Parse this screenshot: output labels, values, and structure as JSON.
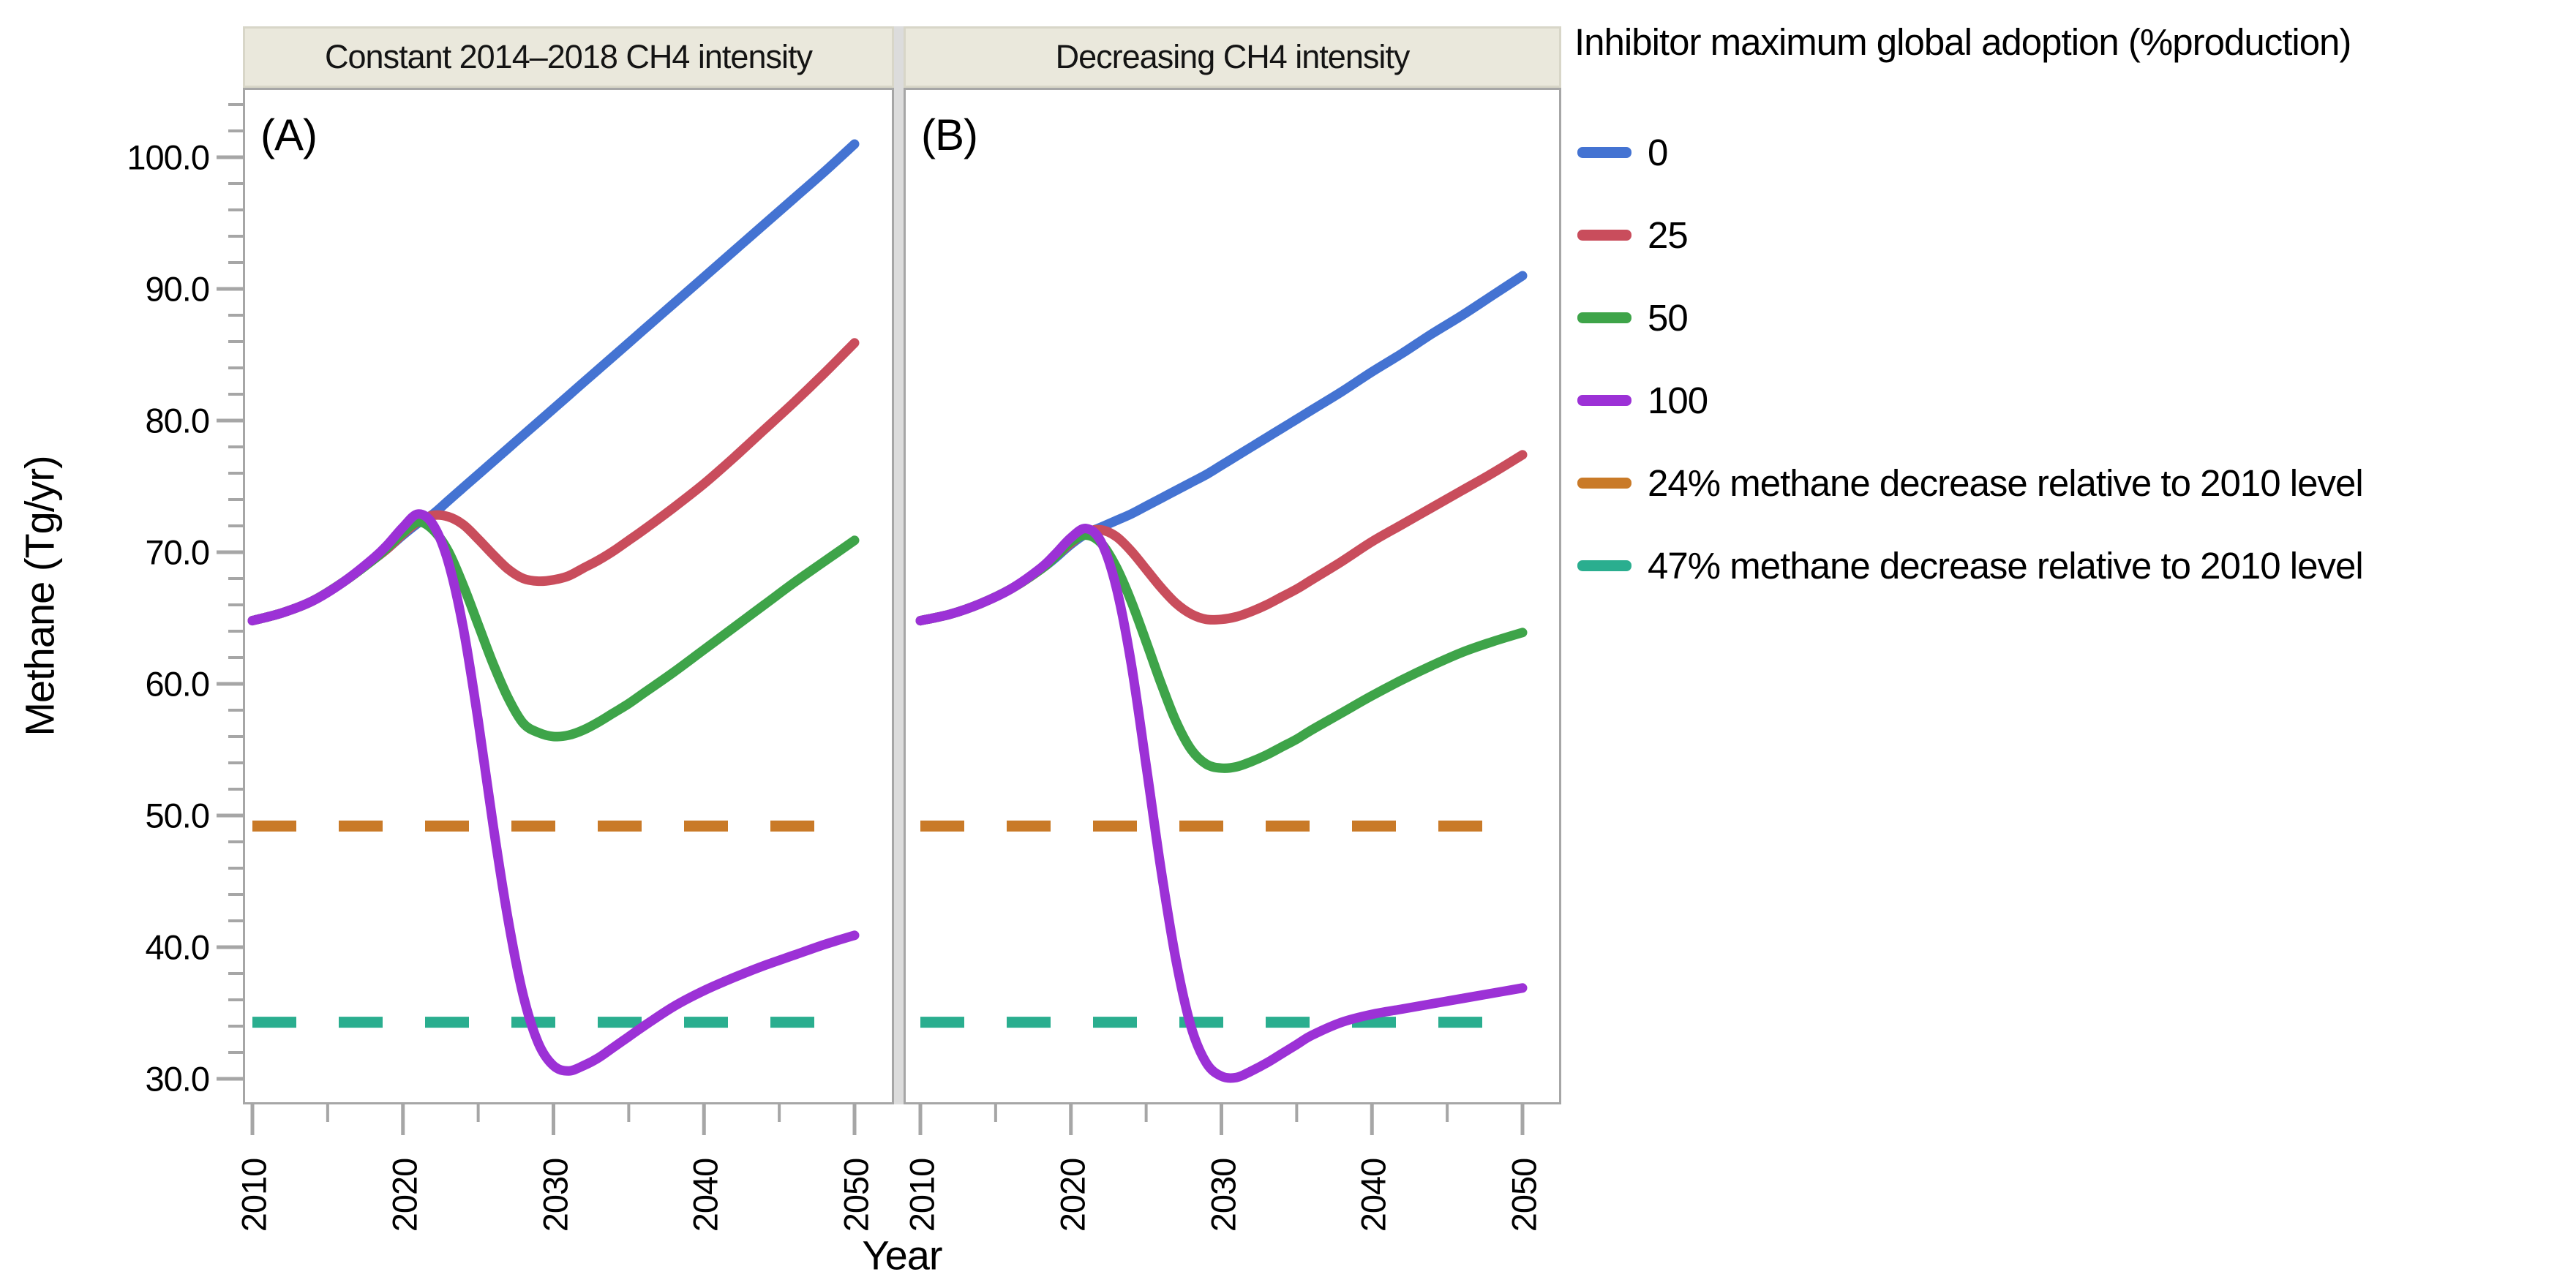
{
  "figure": {
    "panel_a": {
      "header": "Constant 2014–2018 CH4 intensity",
      "label": "(A)"
    },
    "panel_b": {
      "header": "Decreasing CH4 intensity",
      "label": "(B)"
    },
    "y_axis": {
      "title": "Methane (Tg/yr)",
      "tick_labels": [
        "100.0",
        "90.0",
        "80.0",
        "70.0",
        "60.0",
        "50.0",
        "40.0",
        "30.0"
      ],
      "tick_values": [
        100,
        90,
        80,
        70,
        60,
        50,
        40,
        30
      ],
      "minor_step": 2
    },
    "x_axis": {
      "title": "Year",
      "tick_labels": [
        "2010",
        "2020",
        "2030",
        "2040",
        "2050"
      ],
      "tick_values": [
        2010,
        2020,
        2030,
        2040,
        2050
      ],
      "minor_step": 5
    },
    "legend": {
      "title": "Inhibitor maximum global adoption (%production)",
      "items": [
        {
          "label": "0",
          "color": "#4473D2",
          "dashed": false
        },
        {
          "label": "25",
          "color": "#C94D5C",
          "dashed": false
        },
        {
          "label": "50",
          "color": "#3EA449",
          "dashed": false
        },
        {
          "label": "100",
          "color": "#9C31D6",
          "dashed": false
        },
        {
          "label": "24% methane decrease relative to 2010 level",
          "color": "#C97A28",
          "dashed": true
        },
        {
          "label": "47% methane decrease relative to 2010 level",
          "color": "#2AAE8F",
          "dashed": true
        }
      ]
    },
    "colors": {
      "axis_gray": "#A6A6A6",
      "header_fill": "#EAE8DC",
      "divider": "#DCDCDC"
    }
  },
  "chart_data": [
    {
      "type": "line",
      "panel": "A",
      "title": "Constant 2014–2018 CH4 intensity",
      "xlabel": "Year",
      "ylabel": "Methane (Tg/yr)",
      "xlim": [
        2009.4,
        2052.6
      ],
      "ylim": [
        28,
        105
      ],
      "grid": false,
      "legend_position": "right",
      "x": [
        2010,
        2012,
        2014,
        2016,
        2018,
        2019,
        2020,
        2021,
        2022,
        2023,
        2024,
        2025,
        2026,
        2027,
        2028,
        2029,
        2030,
        2031,
        2032,
        2033,
        2034,
        2035,
        2036,
        2038,
        2040,
        2042,
        2044,
        2046,
        2048,
        2050
      ],
      "series": [
        {
          "name": "0",
          "color": "#4473D2",
          "values": [
            64.8,
            65.4,
            66.3,
            67.7,
            69.4,
            70.3,
            71.3,
            72.2,
            72.9,
            73.9,
            74.9,
            75.9,
            76.9,
            77.9,
            78.9,
            79.9,
            80.9,
            81.9,
            82.9,
            83.9,
            84.9,
            85.9,
            86.9,
            88.9,
            90.9,
            92.9,
            94.9,
            96.9,
            98.9,
            101.0
          ]
        },
        {
          "name": "25",
          "color": "#C94D5C",
          "values": [
            64.8,
            65.4,
            66.3,
            67.7,
            69.4,
            70.3,
            71.4,
            72.3,
            72.8,
            72.7,
            72.1,
            71.0,
            69.8,
            68.7,
            68.0,
            67.8,
            67.9,
            68.2,
            68.8,
            69.4,
            70.1,
            70.9,
            71.7,
            73.4,
            75.2,
            77.2,
            79.3,
            81.4,
            83.6,
            85.9
          ]
        },
        {
          "name": "50",
          "color": "#3EA449",
          "values": [
            64.8,
            65.4,
            66.3,
            67.7,
            69.4,
            70.4,
            71.5,
            72.3,
            71.7,
            70.1,
            67.5,
            64.5,
            61.5,
            58.9,
            57.0,
            56.3,
            56.0,
            56.1,
            56.5,
            57.1,
            57.8,
            58.5,
            59.3,
            60.9,
            62.6,
            64.3,
            66.0,
            67.7,
            69.3,
            70.9
          ]
        },
        {
          "name": "100",
          "color": "#9C31D6",
          "values": [
            64.8,
            65.4,
            66.3,
            67.7,
            69.5,
            70.6,
            71.9,
            72.9,
            72.1,
            69.3,
            64.3,
            57.2,
            49.2,
            42.0,
            36.3,
            32.7,
            31.0,
            30.6,
            31.0,
            31.6,
            32.4,
            33.2,
            34.0,
            35.5,
            36.7,
            37.7,
            38.6,
            39.4,
            40.2,
            40.9
          ]
        }
      ],
      "reference_lines": [
        {
          "label": "24% methane decrease relative to 2010 level",
          "value": 49.2,
          "color": "#C97A28",
          "style": "dashed"
        },
        {
          "label": "47% methane decrease relative to 2010 level",
          "value": 34.3,
          "color": "#2AAE8F",
          "style": "dashed"
        }
      ]
    },
    {
      "type": "line",
      "panel": "B",
      "title": "Decreasing CH4 intensity",
      "xlabel": "Year",
      "ylabel": "Methane (Tg/yr)",
      "xlim": [
        2009.4,
        2052.6
      ],
      "ylim": [
        28,
        105
      ],
      "grid": false,
      "legend_position": "right",
      "x": [
        2010,
        2012,
        2014,
        2016,
        2018,
        2019,
        2020,
        2021,
        2022,
        2023,
        2024,
        2025,
        2026,
        2027,
        2028,
        2029,
        2030,
        2031,
        2032,
        2033,
        2034,
        2035,
        2036,
        2038,
        2040,
        2042,
        2044,
        2046,
        2048,
        2050
      ],
      "series": [
        {
          "name": "0",
          "color": "#4473D2",
          "values": [
            64.8,
            65.3,
            66.1,
            67.2,
            68.7,
            69.6,
            70.6,
            71.4,
            71.9,
            72.4,
            72.9,
            73.5,
            74.1,
            74.7,
            75.3,
            75.9,
            76.6,
            77.3,
            78.0,
            78.7,
            79.4,
            80.1,
            80.8,
            82.2,
            83.7,
            85.1,
            86.6,
            88.0,
            89.5,
            91.0
          ]
        },
        {
          "name": "25",
          "color": "#C94D5C",
          "values": [
            64.8,
            65.3,
            66.1,
            67.2,
            68.7,
            69.7,
            70.7,
            71.5,
            71.7,
            71.2,
            70.1,
            68.7,
            67.3,
            66.1,
            65.3,
            64.9,
            64.9,
            65.1,
            65.5,
            66.0,
            66.6,
            67.2,
            67.9,
            69.3,
            70.8,
            72.1,
            73.4,
            74.7,
            76.0,
            77.4
          ]
        },
        {
          "name": "50",
          "color": "#3EA449",
          "values": [
            64.8,
            65.3,
            66.1,
            67.2,
            68.7,
            69.7,
            70.8,
            71.3,
            70.7,
            68.9,
            66.3,
            63.2,
            60.0,
            57.1,
            55.0,
            53.9,
            53.6,
            53.7,
            54.1,
            54.6,
            55.2,
            55.8,
            56.5,
            57.8,
            59.1,
            60.3,
            61.4,
            62.4,
            63.2,
            63.9
          ]
        },
        {
          "name": "100",
          "color": "#9C31D6",
          "values": [
            64.8,
            65.3,
            66.1,
            67.2,
            68.8,
            69.9,
            71.1,
            71.8,
            70.8,
            67.4,
            61.6,
            53.8,
            45.8,
            38.9,
            33.9,
            31.2,
            30.2,
            30.1,
            30.6,
            31.2,
            31.9,
            32.6,
            33.3,
            34.3,
            34.9,
            35.3,
            35.7,
            36.1,
            36.5,
            36.9
          ]
        }
      ],
      "reference_lines": [
        {
          "label": "24% methane decrease relative to 2010 level",
          "value": 49.2,
          "color": "#C97A28",
          "style": "dashed"
        },
        {
          "label": "47% methane decrease relative to 2010 level",
          "value": 34.3,
          "color": "#2AAE8F",
          "style": "dashed"
        }
      ]
    }
  ]
}
